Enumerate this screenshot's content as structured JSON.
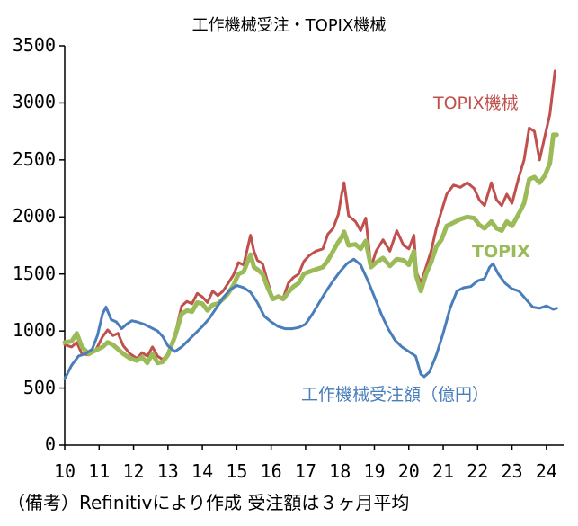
{
  "chart_data": {
    "type": "line",
    "title": "工作機械受注・TOPIX機械",
    "note": "（備考）Refinitivにより作成 受注額は３ヶ月平均",
    "ylim": [
      0,
      3500
    ],
    "yticks": [
      0,
      500,
      1000,
      1500,
      2000,
      2500,
      3000,
      3500
    ],
    "xlim": [
      2010,
      2024.5
    ],
    "xticks": [
      2010,
      2011,
      2012,
      2013,
      2014,
      2015,
      2016,
      2017,
      2018,
      2019,
      2020,
      2021,
      2022,
      2023,
      2024
    ],
    "xtick_labels": [
      "10",
      "11",
      "12",
      "13",
      "14",
      "15",
      "16",
      "17",
      "18",
      "19",
      "20",
      "21",
      "22",
      "23",
      "24"
    ],
    "series": [
      {
        "name": "TOPIX機械",
        "color": "#c0504d",
        "width": 3,
        "points": [
          [
            2010.0,
            880
          ],
          [
            2010.2,
            860
          ],
          [
            2010.35,
            900
          ],
          [
            2010.5,
            800
          ],
          [
            2010.7,
            790
          ],
          [
            2010.9,
            830
          ],
          [
            2011.1,
            950
          ],
          [
            2011.25,
            1010
          ],
          [
            2011.4,
            960
          ],
          [
            2011.55,
            980
          ],
          [
            2011.7,
            870
          ],
          [
            2011.9,
            800
          ],
          [
            2012.1,
            760
          ],
          [
            2012.25,
            810
          ],
          [
            2012.4,
            780
          ],
          [
            2012.55,
            860
          ],
          [
            2012.7,
            780
          ],
          [
            2012.85,
            750
          ],
          [
            2013.0,
            800
          ],
          [
            2013.2,
            960
          ],
          [
            2013.4,
            1220
          ],
          [
            2013.55,
            1260
          ],
          [
            2013.7,
            1240
          ],
          [
            2013.85,
            1330
          ],
          [
            2014.0,
            1300
          ],
          [
            2014.15,
            1250
          ],
          [
            2014.3,
            1350
          ],
          [
            2014.45,
            1310
          ],
          [
            2014.6,
            1350
          ],
          [
            2014.75,
            1420
          ],
          [
            2014.9,
            1490
          ],
          [
            2015.05,
            1600
          ],
          [
            2015.2,
            1580
          ],
          [
            2015.4,
            1840
          ],
          [
            2015.5,
            1700
          ],
          [
            2015.6,
            1620
          ],
          [
            2015.75,
            1590
          ],
          [
            2015.9,
            1430
          ],
          [
            2016.05,
            1280
          ],
          [
            2016.2,
            1310
          ],
          [
            2016.35,
            1290
          ],
          [
            2016.5,
            1420
          ],
          [
            2016.65,
            1470
          ],
          [
            2016.8,
            1500
          ],
          [
            2016.95,
            1610
          ],
          [
            2017.1,
            1660
          ],
          [
            2017.3,
            1700
          ],
          [
            2017.5,
            1720
          ],
          [
            2017.65,
            1850
          ],
          [
            2017.8,
            1900
          ],
          [
            2017.95,
            2020
          ],
          [
            2018.05,
            2200
          ],
          [
            2018.12,
            2300
          ],
          [
            2018.25,
            2010
          ],
          [
            2018.45,
            1960
          ],
          [
            2018.6,
            1880
          ],
          [
            2018.75,
            1990
          ],
          [
            2018.9,
            1560
          ],
          [
            2019.05,
            1700
          ],
          [
            2019.25,
            1800
          ],
          [
            2019.45,
            1700
          ],
          [
            2019.65,
            1880
          ],
          [
            2019.85,
            1750
          ],
          [
            2020.0,
            1720
          ],
          [
            2020.15,
            1840
          ],
          [
            2020.22,
            1520
          ],
          [
            2020.35,
            1420
          ],
          [
            2020.5,
            1560
          ],
          [
            2020.65,
            1700
          ],
          [
            2020.8,
            1900
          ],
          [
            2020.95,
            2050
          ],
          [
            2021.1,
            2200
          ],
          [
            2021.3,
            2280
          ],
          [
            2021.5,
            2260
          ],
          [
            2021.7,
            2300
          ],
          [
            2021.9,
            2250
          ],
          [
            2022.05,
            2150
          ],
          [
            2022.2,
            2100
          ],
          [
            2022.4,
            2300
          ],
          [
            2022.55,
            2150
          ],
          [
            2022.7,
            2100
          ],
          [
            2022.85,
            2200
          ],
          [
            2023.0,
            2120
          ],
          [
            2023.2,
            2350
          ],
          [
            2023.35,
            2500
          ],
          [
            2023.5,
            2780
          ],
          [
            2023.65,
            2750
          ],
          [
            2023.8,
            2500
          ],
          [
            2023.95,
            2700
          ],
          [
            2024.1,
            2900
          ],
          [
            2024.25,
            3280
          ]
        ]
      },
      {
        "name": "TOPIX",
        "color": "#9bbb59",
        "width": 5,
        "points": [
          [
            2010.0,
            900
          ],
          [
            2010.2,
            910
          ],
          [
            2010.35,
            980
          ],
          [
            2010.5,
            860
          ],
          [
            2010.7,
            800
          ],
          [
            2010.9,
            830
          ],
          [
            2011.1,
            860
          ],
          [
            2011.25,
            900
          ],
          [
            2011.4,
            880
          ],
          [
            2011.55,
            840
          ],
          [
            2011.7,
            800
          ],
          [
            2011.9,
            760
          ],
          [
            2012.1,
            740
          ],
          [
            2012.25,
            770
          ],
          [
            2012.4,
            720
          ],
          [
            2012.55,
            800
          ],
          [
            2012.7,
            720
          ],
          [
            2012.85,
            730
          ],
          [
            2013.0,
            790
          ],
          [
            2013.2,
            950
          ],
          [
            2013.4,
            1150
          ],
          [
            2013.55,
            1180
          ],
          [
            2013.7,
            1170
          ],
          [
            2013.85,
            1250
          ],
          [
            2014.0,
            1240
          ],
          [
            2014.15,
            1180
          ],
          [
            2014.3,
            1230
          ],
          [
            2014.45,
            1240
          ],
          [
            2014.6,
            1280
          ],
          [
            2014.75,
            1330
          ],
          [
            2014.9,
            1400
          ],
          [
            2015.05,
            1500
          ],
          [
            2015.2,
            1520
          ],
          [
            2015.4,
            1670
          ],
          [
            2015.5,
            1560
          ],
          [
            2015.6,
            1540
          ],
          [
            2015.75,
            1500
          ],
          [
            2015.9,
            1380
          ],
          [
            2016.05,
            1280
          ],
          [
            2016.2,
            1300
          ],
          [
            2016.35,
            1280
          ],
          [
            2016.5,
            1340
          ],
          [
            2016.65,
            1390
          ],
          [
            2016.8,
            1420
          ],
          [
            2016.95,
            1500
          ],
          [
            2017.1,
            1520
          ],
          [
            2017.3,
            1540
          ],
          [
            2017.5,
            1560
          ],
          [
            2017.65,
            1620
          ],
          [
            2017.8,
            1700
          ],
          [
            2017.95,
            1780
          ],
          [
            2018.05,
            1820
          ],
          [
            2018.12,
            1870
          ],
          [
            2018.25,
            1750
          ],
          [
            2018.45,
            1760
          ],
          [
            2018.6,
            1720
          ],
          [
            2018.75,
            1790
          ],
          [
            2018.9,
            1560
          ],
          [
            2019.05,
            1600
          ],
          [
            2019.25,
            1640
          ],
          [
            2019.45,
            1570
          ],
          [
            2019.65,
            1630
          ],
          [
            2019.85,
            1620
          ],
          [
            2020.0,
            1580
          ],
          [
            2020.15,
            1700
          ],
          [
            2020.22,
            1480
          ],
          [
            2020.35,
            1350
          ],
          [
            2020.5,
            1500
          ],
          [
            2020.65,
            1600
          ],
          [
            2020.8,
            1740
          ],
          [
            2020.95,
            1800
          ],
          [
            2021.1,
            1920
          ],
          [
            2021.3,
            1950
          ],
          [
            2021.5,
            1980
          ],
          [
            2021.7,
            2000
          ],
          [
            2021.9,
            1990
          ],
          [
            2022.05,
            1930
          ],
          [
            2022.2,
            1900
          ],
          [
            2022.4,
            1960
          ],
          [
            2022.55,
            1900
          ],
          [
            2022.7,
            1880
          ],
          [
            2022.85,
            1960
          ],
          [
            2023.0,
            1920
          ],
          [
            2023.2,
            2030
          ],
          [
            2023.35,
            2120
          ],
          [
            2023.5,
            2330
          ],
          [
            2023.65,
            2350
          ],
          [
            2023.8,
            2300
          ],
          [
            2023.95,
            2360
          ],
          [
            2024.1,
            2470
          ],
          [
            2024.2,
            2720
          ],
          [
            2024.3,
            2720
          ]
        ]
      },
      {
        "name": "工作機械受注額（億円）",
        "color": "#4a7ebb",
        "width": 3,
        "points": [
          [
            2010.0,
            580
          ],
          [
            2010.2,
            700
          ],
          [
            2010.4,
            780
          ],
          [
            2010.6,
            800
          ],
          [
            2010.8,
            840
          ],
          [
            2010.95,
            960
          ],
          [
            2011.1,
            1150
          ],
          [
            2011.2,
            1210
          ],
          [
            2011.35,
            1100
          ],
          [
            2011.5,
            1080
          ],
          [
            2011.65,
            1020
          ],
          [
            2011.8,
            1060
          ],
          [
            2011.95,
            1090
          ],
          [
            2012.1,
            1080
          ],
          [
            2012.3,
            1060
          ],
          [
            2012.5,
            1030
          ],
          [
            2012.7,
            1000
          ],
          [
            2012.85,
            950
          ],
          [
            2013.0,
            870
          ],
          [
            2013.2,
            820
          ],
          [
            2013.4,
            860
          ],
          [
            2013.6,
            920
          ],
          [
            2013.8,
            980
          ],
          [
            2014.0,
            1040
          ],
          [
            2014.2,
            1110
          ],
          [
            2014.4,
            1200
          ],
          [
            2014.6,
            1290
          ],
          [
            2014.8,
            1360
          ],
          [
            2015.0,
            1400
          ],
          [
            2015.2,
            1380
          ],
          [
            2015.4,
            1340
          ],
          [
            2015.6,
            1250
          ],
          [
            2015.8,
            1130
          ],
          [
            2016.0,
            1080
          ],
          [
            2016.2,
            1040
          ],
          [
            2016.4,
            1020
          ],
          [
            2016.6,
            1020
          ],
          [
            2016.8,
            1030
          ],
          [
            2017.0,
            1060
          ],
          [
            2017.2,
            1150
          ],
          [
            2017.4,
            1250
          ],
          [
            2017.6,
            1350
          ],
          [
            2017.8,
            1440
          ],
          [
            2018.0,
            1520
          ],
          [
            2018.2,
            1590
          ],
          [
            2018.4,
            1630
          ],
          [
            2018.6,
            1580
          ],
          [
            2018.8,
            1450
          ],
          [
            2019.0,
            1300
          ],
          [
            2019.2,
            1150
          ],
          [
            2019.4,
            1020
          ],
          [
            2019.6,
            920
          ],
          [
            2019.8,
            860
          ],
          [
            2020.0,
            820
          ],
          [
            2020.2,
            780
          ],
          [
            2020.35,
            620
          ],
          [
            2020.45,
            600
          ],
          [
            2020.6,
            640
          ],
          [
            2020.8,
            790
          ],
          [
            2021.0,
            980
          ],
          [
            2021.2,
            1200
          ],
          [
            2021.4,
            1350
          ],
          [
            2021.6,
            1380
          ],
          [
            2021.8,
            1390
          ],
          [
            2022.0,
            1440
          ],
          [
            2022.2,
            1460
          ],
          [
            2022.35,
            1560
          ],
          [
            2022.45,
            1590
          ],
          [
            2022.6,
            1500
          ],
          [
            2022.8,
            1420
          ],
          [
            2023.0,
            1370
          ],
          [
            2023.2,
            1350
          ],
          [
            2023.4,
            1280
          ],
          [
            2023.6,
            1210
          ],
          [
            2023.8,
            1200
          ],
          [
            2024.0,
            1220
          ],
          [
            2024.2,
            1190
          ],
          [
            2024.3,
            1200
          ]
        ]
      }
    ],
    "labels": [
      {
        "text": "TOPIX機械",
        "series": 0
      },
      {
        "text": "TOPIX",
        "series": 1
      },
      {
        "text": "工作機械受注額（億円）",
        "series": 2
      }
    ]
  }
}
